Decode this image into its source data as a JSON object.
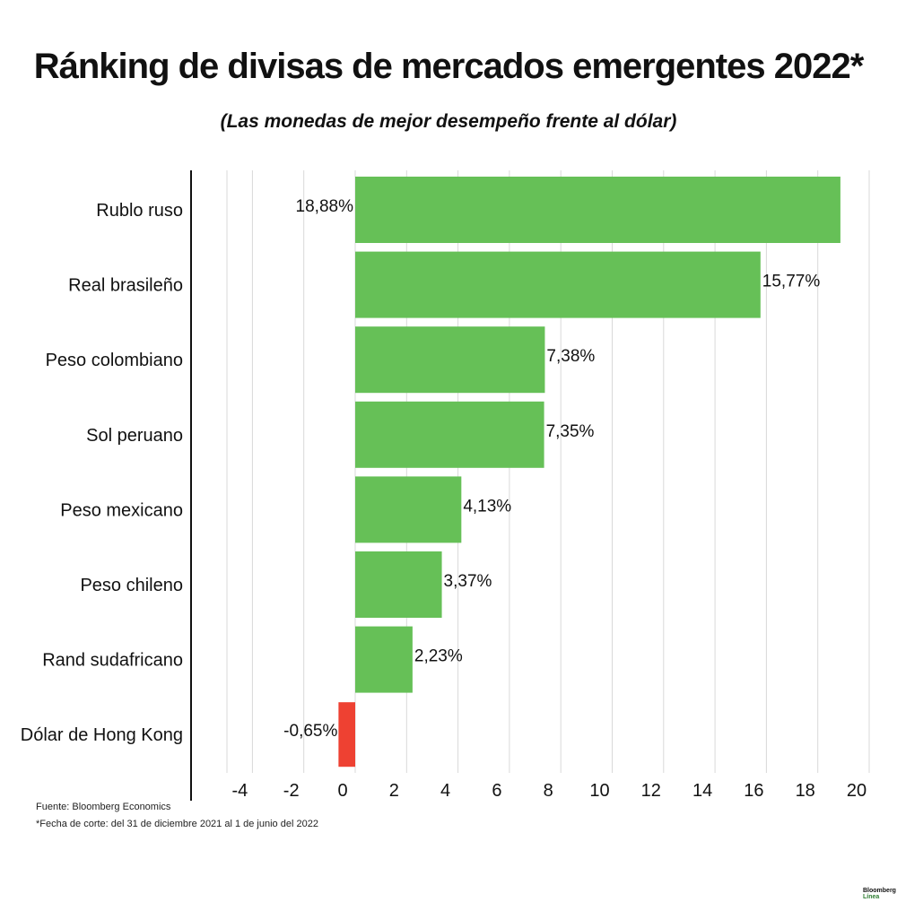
{
  "title": "Ránking de divisas de mercados emergentes 2022*",
  "subtitle": "(Las monedas de mejor desempeño frente al dólar)",
  "source": "Fuente: Bloomberg Economics",
  "footnote": "*Fecha de corte: del 31 de diciembre 2021 al 1 de junio del 2022",
  "brand": {
    "name": "Bloomberg",
    "sub": "Línea"
  },
  "colors": {
    "positive": "#66c057",
    "negative": "#ee4132",
    "grid": "#d9d9d9",
    "axis": "#111111"
  },
  "chart_data": {
    "type": "bar",
    "orientation": "horizontal",
    "categories": [
      "Rublo ruso",
      "Real brasileño",
      "Peso colombiano",
      "Sol peruano",
      "Peso mexicano",
      "Peso chileno",
      "Rand sudafricano",
      "Dólar de Hong Kong"
    ],
    "values": [
      18.88,
      15.77,
      7.38,
      7.35,
      4.13,
      3.37,
      2.23,
      -0.65
    ],
    "labels": [
      "18,88%",
      "15,77%",
      "7,38%",
      "7,35%",
      "4,13%",
      "3,37%",
      "2,23%",
      "-0,65%"
    ],
    "xticks": [
      -4,
      -2,
      0,
      2,
      4,
      6,
      8,
      10,
      12,
      14,
      16,
      18,
      20
    ],
    "xlim": [
      -6,
      20.5
    ],
    "grid": true
  }
}
